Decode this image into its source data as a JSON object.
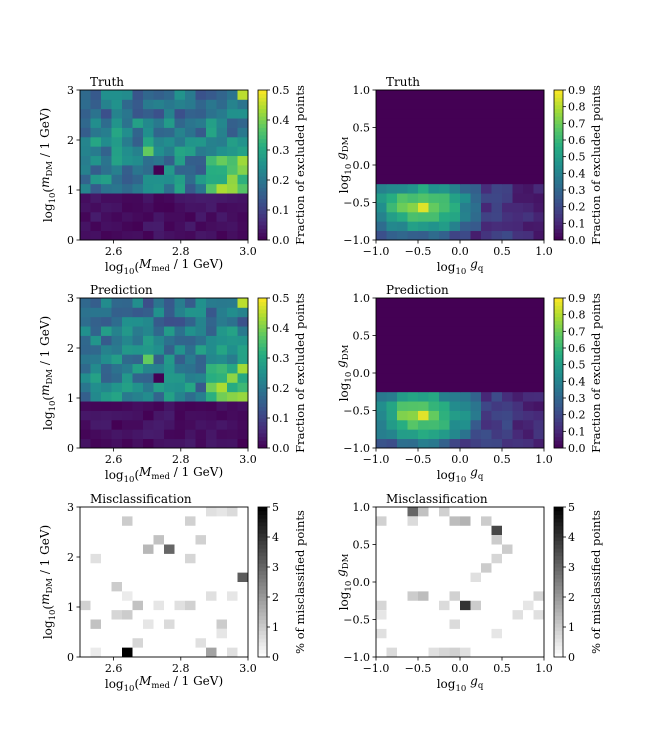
{
  "figure": {
    "panels_description": "2x3 grid of heatmaps"
  },
  "chart_data": [
    {
      "id": "p1",
      "type": "heatmap",
      "title": "Truth",
      "xlabel": "log10(Mmed / 1 GeV)",
      "ylabel": "log10(mDM / 1 GeV)",
      "xlim": [
        2.5,
        3.0
      ],
      "ylim": [
        0,
        3
      ],
      "xticks": [
        "2.6",
        "2.8",
        "3.0"
      ],
      "yticks": [
        "0",
        "1",
        "2",
        "3"
      ],
      "colorbar": {
        "label": "Fraction of excluded points",
        "range": [
          0,
          0.5
        ],
        "ticks": [
          "0.0",
          "0.1",
          "0.2",
          "0.3",
          "0.4",
          "0.5"
        ],
        "colormap": "viridis"
      },
      "grid": {
        "nx": 16,
        "ny": 16,
        "pattern": "mass"
      }
    },
    {
      "id": "p2",
      "type": "heatmap",
      "title": "Truth",
      "xlabel": "log10 gq",
      "ylabel": "log10 gDM",
      "xlim": [
        -1.0,
        1.0
      ],
      "ylim": [
        -1.0,
        1.0
      ],
      "xticks": [
        "−1.0",
        "−0.5",
        "0.0",
        "0.5",
        "1.0"
      ],
      "yticks": [
        "−1.0",
        "−0.5",
        "0.0",
        "0.5",
        "1.0"
      ],
      "colorbar": {
        "label": "Fraction of excluded points",
        "range": [
          0,
          0.9
        ],
        "ticks": [
          "0.0",
          "0.1",
          "0.2",
          "0.3",
          "0.4",
          "0.5",
          "0.6",
          "0.7",
          "0.8",
          "0.9"
        ],
        "colormap": "viridis"
      },
      "grid": {
        "nx": 16,
        "ny": 16,
        "pattern": "coupling"
      }
    },
    {
      "id": "p3",
      "type": "heatmap",
      "title": "Prediction",
      "xlabel": "log10(Mmed / 1 GeV)",
      "ylabel": "log10(mDM / 1 GeV)",
      "xlim": [
        2.5,
        3.0
      ],
      "ylim": [
        0,
        3
      ],
      "xticks": [
        "2.6",
        "2.8",
        "3.0"
      ],
      "yticks": [
        "0",
        "1",
        "2",
        "3"
      ],
      "colorbar": {
        "label": "Fraction of excluded points",
        "range": [
          0,
          0.5
        ],
        "ticks": [
          "0.0",
          "0.1",
          "0.2",
          "0.3",
          "0.4",
          "0.5"
        ],
        "colormap": "viridis"
      },
      "grid": {
        "nx": 16,
        "ny": 16,
        "pattern": "mass"
      }
    },
    {
      "id": "p4",
      "type": "heatmap",
      "title": "Prediction",
      "xlabel": "log10 gq",
      "ylabel": "log10 gDM",
      "xlim": [
        -1.0,
        1.0
      ],
      "ylim": [
        -1.0,
        1.0
      ],
      "xticks": [
        "−1.0",
        "−0.5",
        "0.0",
        "0.5",
        "1.0"
      ],
      "yticks": [
        "−1.0",
        "−0.5",
        "0.0",
        "0.5",
        "1.0"
      ],
      "colorbar": {
        "label": "Fraction of excluded points",
        "range": [
          0,
          0.9
        ],
        "ticks": [
          "0.0",
          "0.1",
          "0.2",
          "0.3",
          "0.4",
          "0.5",
          "0.6",
          "0.7",
          "0.8",
          "0.9"
        ],
        "colormap": "viridis"
      },
      "grid": {
        "nx": 16,
        "ny": 16,
        "pattern": "coupling"
      }
    },
    {
      "id": "p5",
      "type": "heatmap",
      "title": "Misclassification",
      "xlabel": "log10(Mmed / 1 GeV)",
      "ylabel": "log10(mDM / 1 GeV)",
      "xlim": [
        2.5,
        3.0
      ],
      "ylim": [
        0,
        3
      ],
      "xticks": [
        "2.6",
        "2.8",
        "3.0"
      ],
      "yticks": [
        "0",
        "1",
        "2",
        "3"
      ],
      "colorbar": {
        "label": "% of misclassified points",
        "range": [
          0,
          5
        ],
        "ticks": [
          "0",
          "1",
          "2",
          "3",
          "4",
          "5"
        ],
        "colormap": "greys"
      },
      "grid": {
        "nx": 16,
        "ny": 16,
        "cells": [
          [
            4,
            0,
            5.0
          ],
          [
            12,
            0,
            1.8
          ],
          [
            14,
            0,
            0.6
          ],
          [
            1,
            0,
            0.4
          ],
          [
            5,
            1,
            0.8
          ],
          [
            1,
            3,
            1.2
          ],
          [
            8,
            3,
            0.7
          ],
          [
            13,
            3,
            1.0
          ],
          [
            6,
            3,
            0.5
          ],
          [
            3,
            4,
            0.8
          ],
          [
            4,
            4,
            1.0
          ],
          [
            5,
            5,
            1.2
          ],
          [
            7,
            5,
            0.5
          ],
          [
            9,
            5,
            0.6
          ],
          [
            10,
            5,
            0.9
          ],
          [
            4,
            6,
            0.4
          ],
          [
            12,
            6,
            0.6
          ],
          [
            14,
            6,
            0.5
          ],
          [
            3,
            7,
            1.0
          ],
          [
            15,
            8,
            3.2
          ],
          [
            10,
            10,
            0.8
          ],
          [
            6,
            11,
            1.4
          ],
          [
            8,
            11,
            3.0
          ],
          [
            7,
            12,
            1.2
          ],
          [
            11,
            12,
            0.9
          ],
          [
            4,
            14,
            1.0
          ],
          [
            10,
            14,
            0.9
          ],
          [
            12,
            15,
            0.6
          ],
          [
            14,
            15,
            0.7
          ],
          [
            1,
            10,
            0.6
          ],
          [
            13,
            15,
            0.5
          ],
          [
            0,
            5,
            0.9
          ],
          [
            11,
            1,
            0.6
          ],
          [
            13,
            2,
            0.5
          ]
        ]
      }
    },
    {
      "id": "p6",
      "type": "heatmap",
      "title": "Misclassification",
      "xlabel": "log10 gq",
      "ylabel": "log10 gDM",
      "xlim": [
        -1.0,
        1.0
      ],
      "ylim": [
        -1.0,
        1.0
      ],
      "xticks": [
        "−1.0",
        "−0.5",
        "0.0",
        "0.5",
        "1.0"
      ],
      "yticks": [
        "−1.0",
        "−0.5",
        "0.0",
        "0.5",
        "1.0"
      ],
      "colorbar": {
        "label": "% of misclassified points",
        "range": [
          0,
          5
        ],
        "ticks": [
          "0",
          "1",
          "2",
          "3",
          "4",
          "5"
        ],
        "colormap": "greys"
      },
      "grid": {
        "nx": 16,
        "ny": 16,
        "cells": [
          [
            3,
            15,
            3.0
          ],
          [
            4,
            15,
            1.2
          ],
          [
            6,
            15,
            0.9
          ],
          [
            3,
            14,
            0.7
          ],
          [
            7,
            14,
            1.3
          ],
          [
            8,
            14,
            1.5
          ],
          [
            10,
            14,
            1.0
          ],
          [
            0,
            14,
            0.9
          ],
          [
            11,
            13,
            3.6
          ],
          [
            11,
            12,
            1.0
          ],
          [
            12,
            11,
            1.0
          ],
          [
            11,
            10,
            0.8
          ],
          [
            10,
            9,
            1.0
          ],
          [
            9,
            8,
            0.6
          ],
          [
            3,
            6,
            1.0
          ],
          [
            4,
            6,
            1.3
          ],
          [
            7,
            6,
            0.9
          ],
          [
            6,
            5,
            0.7
          ],
          [
            8,
            5,
            4.0
          ],
          [
            15,
            6,
            0.8
          ],
          [
            9,
            5,
            1.0
          ],
          [
            14,
            5,
            0.5
          ],
          [
            0,
            5,
            0.8
          ],
          [
            13,
            4,
            0.6
          ],
          [
            0,
            4,
            0.5
          ],
          [
            15,
            4,
            0.6
          ],
          [
            1,
            0,
            0.7
          ],
          [
            5,
            0,
            0.6
          ],
          [
            6,
            0,
            0.8
          ],
          [
            7,
            0,
            0.9
          ],
          [
            8,
            0,
            0.6
          ],
          [
            0,
            2,
            0.6
          ],
          [
            11,
            2,
            0.5
          ],
          [
            7,
            3,
            0.7
          ]
        ]
      }
    }
  ]
}
